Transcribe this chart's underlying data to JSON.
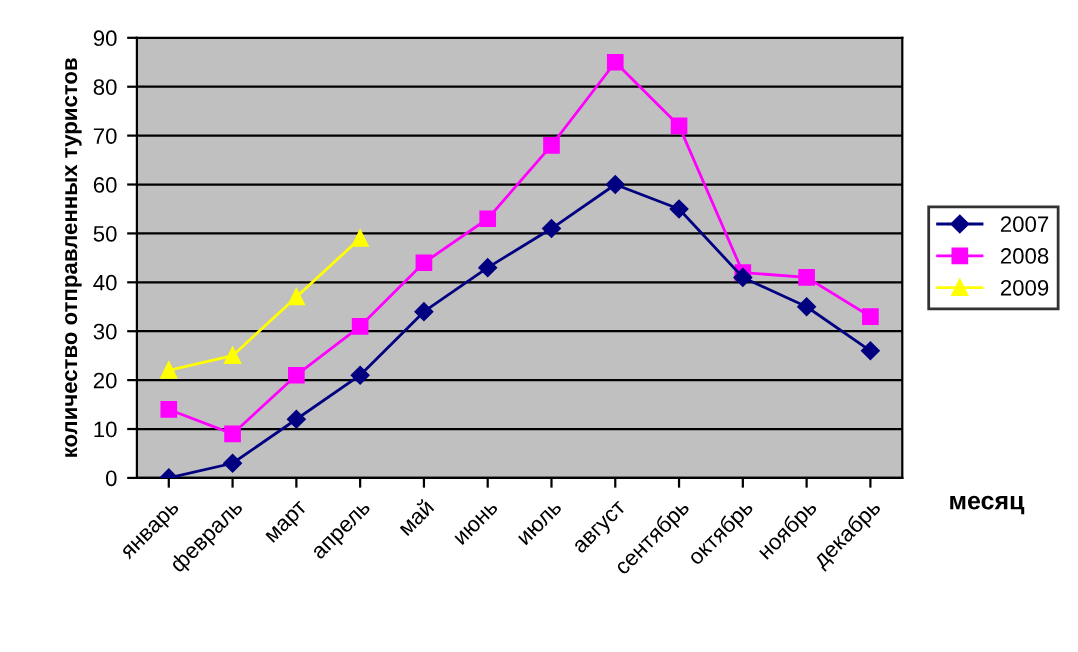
{
  "chart_data": {
    "type": "line",
    "xlabel": "месяц",
    "ylabel": "количество отправленных туристов",
    "categories": [
      "январь",
      "февраль",
      "март",
      "апрель",
      "май",
      "июнь",
      "июль",
      "август",
      "сентябрь",
      "октябрь",
      "ноябрь",
      "декабрь"
    ],
    "series": [
      {
        "name": "2007",
        "color": "#000080",
        "marker": "diamond",
        "values": [
          0,
          3,
          12,
          21,
          34,
          43,
          51,
          60,
          55,
          41,
          35,
          26
        ]
      },
      {
        "name": "2008",
        "color": "#ff00ff",
        "marker": "square",
        "values": [
          14,
          9,
          21,
          31,
          44,
          53,
          68,
          85,
          72,
          42,
          41,
          33
        ]
      },
      {
        "name": "2009",
        "color": "#ffff00",
        "marker": "triangle",
        "values": [
          22,
          25,
          37,
          49,
          null,
          null,
          null,
          null,
          null,
          null,
          null,
          null
        ]
      }
    ],
    "ylim": [
      0,
      90
    ],
    "yticks": [
      0,
      10,
      20,
      30,
      40,
      50,
      60,
      70,
      80,
      90
    ],
    "grid": "y",
    "legend": "right"
  }
}
